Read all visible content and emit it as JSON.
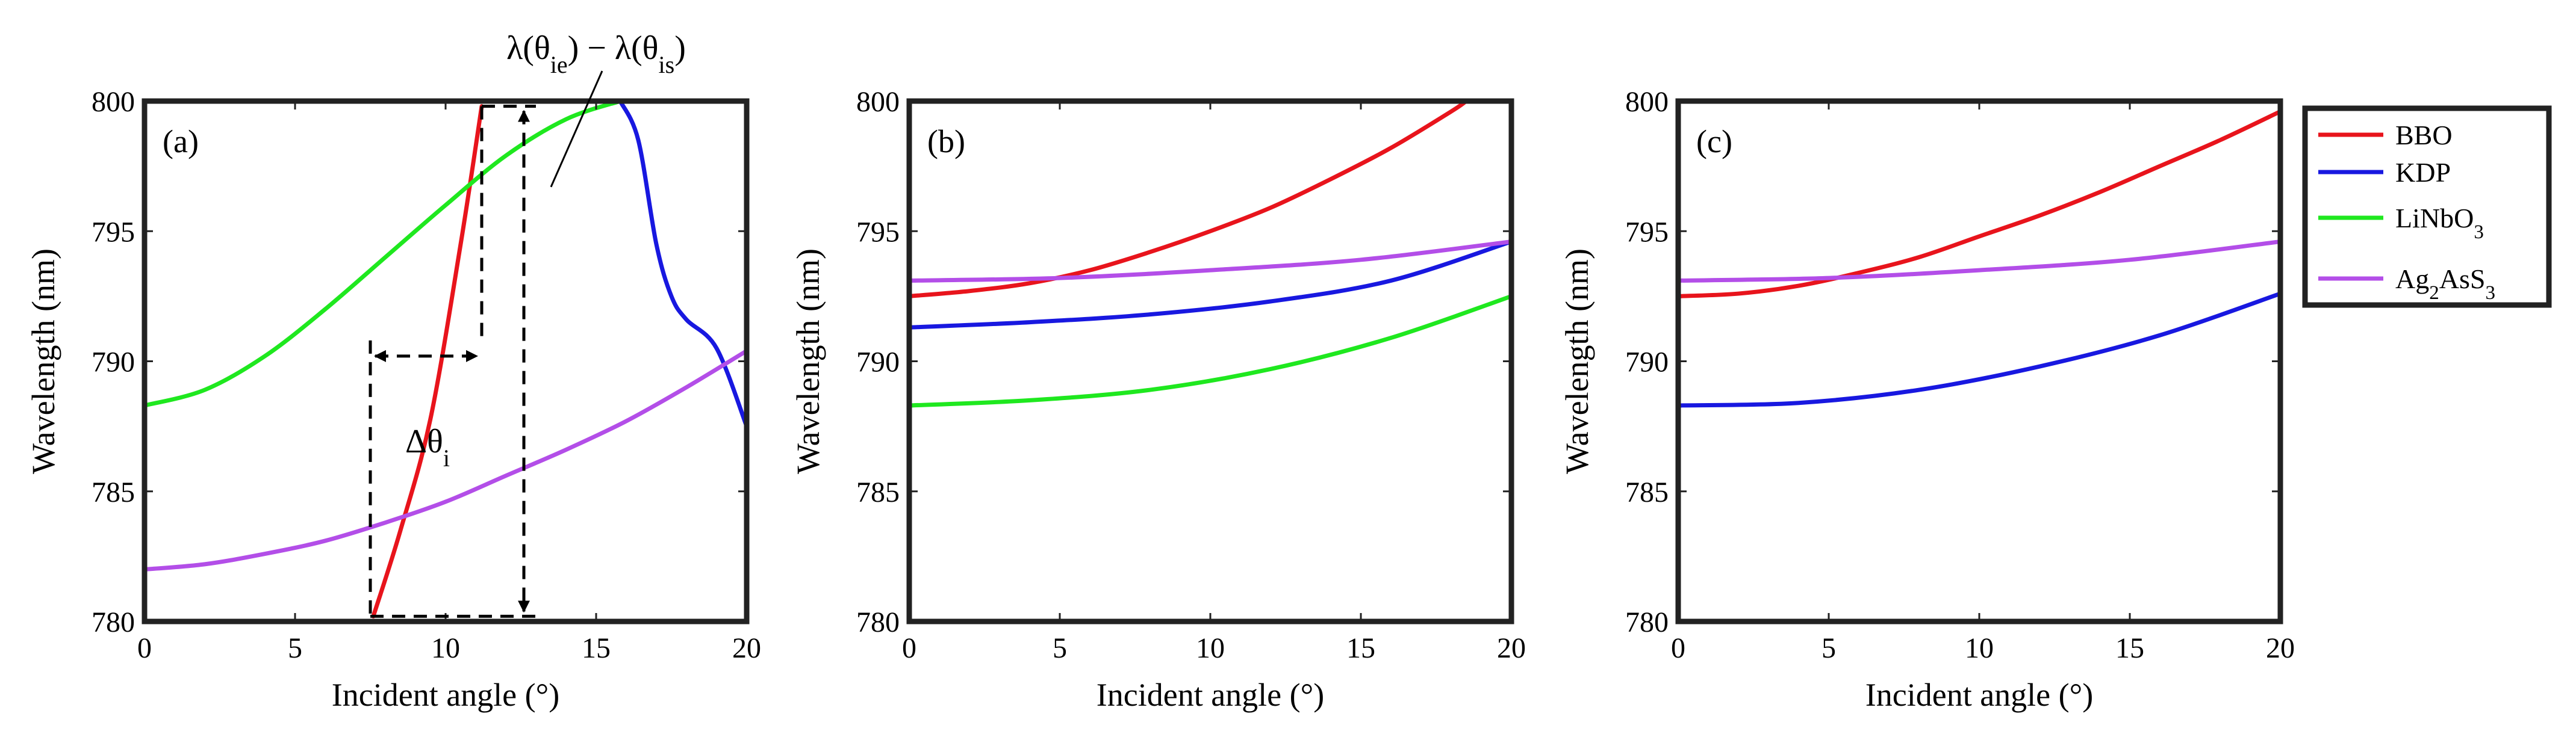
{
  "chart_data": {
    "legend": [
      {
        "key": "BBO",
        "parts": [
          [
            "BBO",
            ""
          ]
        ],
        "color": "#e8141c"
      },
      {
        "key": "KDP",
        "parts": [
          [
            "KDP",
            ""
          ]
        ],
        "color": "#1818e0"
      },
      {
        "key": "LiNbO3",
        "parts": [
          [
            "LiNbO",
            ""
          ],
          [
            "3",
            "sub"
          ]
        ],
        "color": "#1fe81f"
      },
      {
        "key": "Ag2AsS3",
        "parts": [
          [
            "Ag",
            ""
          ],
          [
            "2",
            "sub"
          ],
          [
            "AsS",
            ""
          ],
          [
            "3",
            "sub"
          ]
        ],
        "color": "#b34ee8"
      }
    ],
    "panels": [
      {
        "type": "line",
        "label": "(a)",
        "xlabel": "Incident angle (°)",
        "ylabel": "Wavelength (nm)",
        "xlim": [
          0,
          20
        ],
        "ylim": [
          780,
          800
        ],
        "xticks": [
          0,
          5,
          10,
          15,
          20
        ],
        "yticks": [
          780,
          785,
          790,
          795,
          800
        ],
        "series": [
          {
            "name": "BBO",
            "color": "#e8141c",
            "points": [
              [
                7.6,
                780.2
              ],
              [
                8.5,
                783.5
              ],
              [
                9.5,
                787.8
              ],
              [
                10.5,
                794.5
              ],
              [
                11.2,
                799.8
              ]
            ]
          },
          {
            "name": "KDP",
            "color": "#1818e0",
            "points": [
              [
                15.8,
                800
              ],
              [
                16.4,
                798.5
              ],
              [
                17,
                794.5
              ],
              [
                17.5,
                792.5
              ],
              [
                18,
                791.6
              ],
              [
                19,
                790.5
              ],
              [
                20,
                787.5
              ]
            ]
          },
          {
            "name": "LiNbO3",
            "color": "#1fe81f",
            "points": [
              [
                0,
                788.3
              ],
              [
                2,
                788.9
              ],
              [
                4,
                790.2
              ],
              [
                6,
                792.0
              ],
              [
                8,
                794.0
              ],
              [
                10,
                796.0
              ],
              [
                12,
                797.9
              ],
              [
                14,
                799.3
              ],
              [
                15.8,
                800
              ]
            ]
          },
          {
            "name": "Ag2AsS3",
            "color": "#b34ee8",
            "points": [
              [
                0,
                782.0
              ],
              [
                2,
                782.2
              ],
              [
                4,
                782.6
              ],
              [
                6,
                783.1
              ],
              [
                8,
                783.8
              ],
              [
                10,
                784.6
              ],
              [
                12,
                785.6
              ],
              [
                14,
                786.6
              ],
              [
                16,
                787.7
              ],
              [
                18,
                789.0
              ],
              [
                20,
                790.4
              ]
            ]
          }
        ],
        "annotations": {
          "delta_theta": {
            "parts": [
              [
                "Δθ",
                ""
              ],
              [
                "i",
                "sub"
              ]
            ],
            "x_from": 7.5,
            "x_to": 11.2,
            "y": 790.2
          },
          "delta_lambda": {
            "parts": [
              [
                "λ(θ",
                ""
              ],
              [
                "ie",
                "sub"
              ],
              [
                ") − λ(θ",
                ""
              ],
              [
                "is",
                "sub"
              ],
              [
                ")",
                ""
              ]
            ],
            "x": 12.6,
            "y_from": 780.2,
            "y_to": 799.8
          },
          "guide_lines": {
            "x_start": 7.5,
            "x_peak": 11.2,
            "y_low": 780.2,
            "y_high": 799.8
          }
        }
      },
      {
        "type": "line",
        "label": "(b)",
        "xlabel": "Incident angle (°)",
        "ylabel": "Wavelength (nm)",
        "xlim": [
          0,
          20
        ],
        "ylim": [
          780,
          800
        ],
        "xticks": [
          0,
          5,
          10,
          15,
          20
        ],
        "yticks": [
          780,
          785,
          790,
          795,
          800
        ],
        "series": [
          {
            "name": "BBO",
            "color": "#e8141c",
            "points": [
              [
                0,
                792.5
              ],
              [
                2,
                792.7
              ],
              [
                4,
                793.0
              ],
              [
                6,
                793.5
              ],
              [
                8,
                794.2
              ],
              [
                10,
                795.0
              ],
              [
                12,
                795.9
              ],
              [
                14,
                797.0
              ],
              [
                16,
                798.2
              ],
              [
                18,
                799.6
              ],
              [
                18.5,
                800
              ]
            ]
          },
          {
            "name": "KDP",
            "color": "#1818e0",
            "points": [
              [
                0,
                791.3
              ],
              [
                4,
                791.5
              ],
              [
                8,
                791.8
              ],
              [
                12,
                792.3
              ],
              [
                16,
                793.1
              ],
              [
                20,
                794.6
              ]
            ]
          },
          {
            "name": "LiNbO3",
            "color": "#1fe81f",
            "points": [
              [
                0,
                788.3
              ],
              [
                4,
                788.5
              ],
              [
                8,
                788.9
              ],
              [
                12,
                789.7
              ],
              [
                16,
                790.9
              ],
              [
                20,
                792.5
              ]
            ]
          },
          {
            "name": "Ag2AsS3",
            "color": "#b34ee8",
            "points": [
              [
                0,
                793.1
              ],
              [
                5,
                793.2
              ],
              [
                10,
                793.5
              ],
              [
                15,
                793.9
              ],
              [
                20,
                794.6
              ]
            ]
          }
        ]
      },
      {
        "type": "line",
        "label": "(c)",
        "xlabel": "Incident angle (°)",
        "ylabel": "Wavelength (nm)",
        "xlim": [
          0,
          20
        ],
        "ylim": [
          780,
          800
        ],
        "xticks": [
          0,
          5,
          10,
          15,
          20
        ],
        "yticks": [
          780,
          785,
          790,
          795,
          800
        ],
        "series": [
          {
            "name": "BBO",
            "color": "#e8141c",
            "points": [
              [
                0,
                792.5
              ],
              [
                2,
                792.6
              ],
              [
                4,
                792.9
              ],
              [
                6,
                793.4
              ],
              [
                8,
                794.0
              ],
              [
                10,
                794.8
              ],
              [
                12,
                795.6
              ],
              [
                14,
                796.5
              ],
              [
                16,
                797.5
              ],
              [
                18,
                798.5
              ],
              [
                20,
                799.6
              ]
            ]
          },
          {
            "name": "KDP",
            "color": "#1818e0",
            "points": [
              [
                0,
                788.3
              ],
              [
                4,
                788.4
              ],
              [
                8,
                788.9
              ],
              [
                12,
                789.8
              ],
              [
                16,
                791.0
              ],
              [
                20,
                792.6
              ]
            ]
          },
          {
            "name": "Ag2AsS3",
            "color": "#b34ee8",
            "points": [
              [
                0,
                793.1
              ],
              [
                5,
                793.2
              ],
              [
                10,
                793.5
              ],
              [
                15,
                793.9
              ],
              [
                20,
                794.6
              ]
            ]
          }
        ]
      }
    ]
  }
}
